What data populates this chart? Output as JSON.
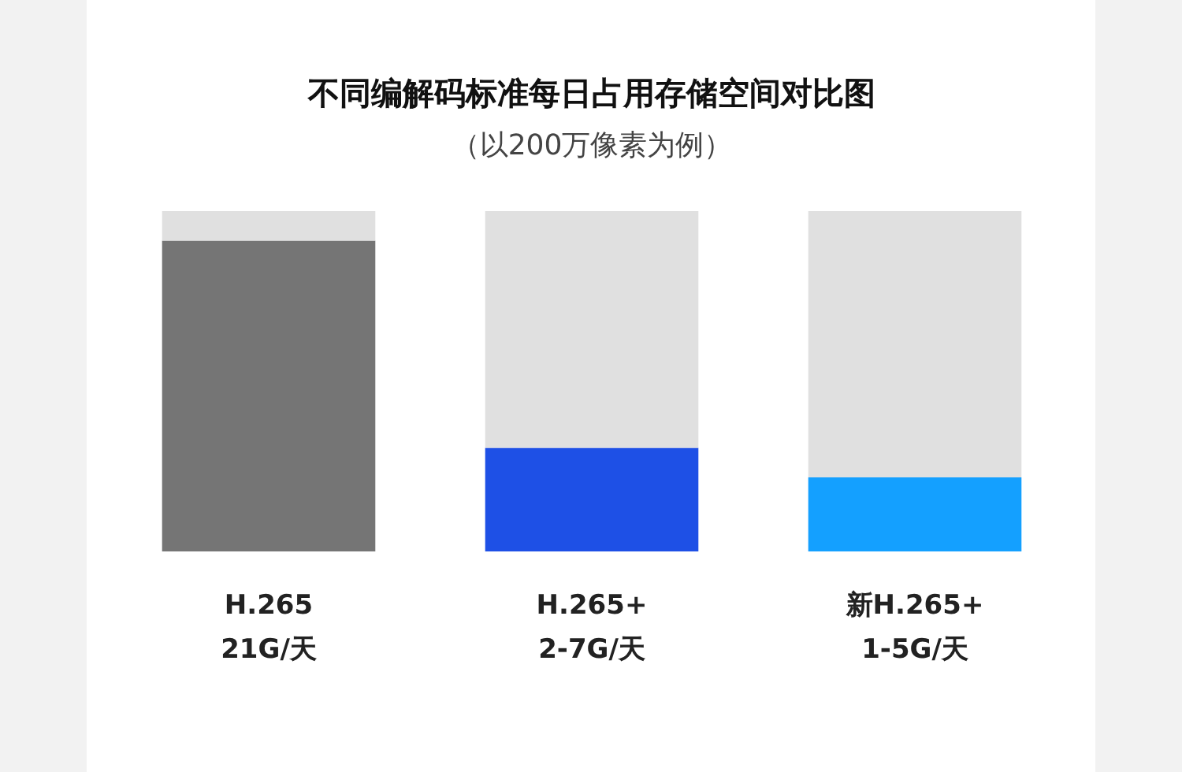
{
  "chart_data": {
    "type": "bar",
    "title": "不同编解码标准每日占用存储空间对比图",
    "subtitle": "（以200万像素为例）",
    "categories": [
      "H.265",
      "H.265+",
      "新H.265+"
    ],
    "ylim": [
      0,
      23
    ],
    "tick_labels": "x",
    "stacked": true,
    "series": [
      {
        "colors": [
          "#757575",
          "#1e50e6",
          "#14a0ff"
        ],
        "values": [
          21,
          7,
          5
        ],
        "value_labels": [
          "21G/天",
          "2-7G/天",
          "1-5G/天"
        ]
      },
      {
        "color": "#e0e0e0",
        "values": [
          2,
          16,
          18
        ]
      }
    ]
  }
}
